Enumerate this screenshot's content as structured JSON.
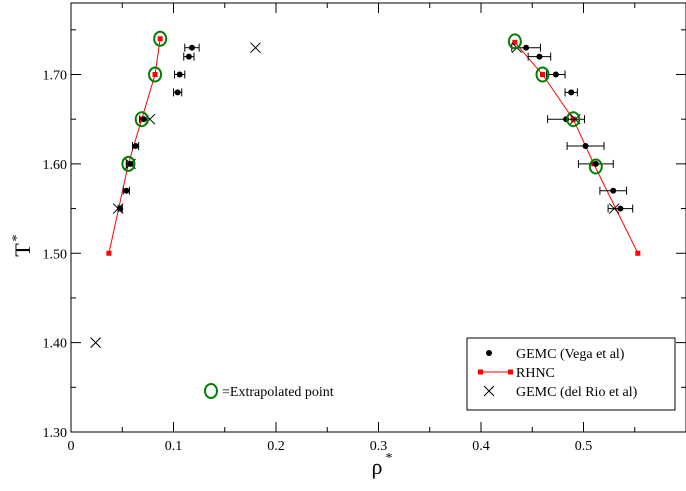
{
  "chart_data": {
    "type": "scatter",
    "title": "",
    "xlabel": "ρ",
    "xlabel_superscript": "*",
    "ylabel": "T",
    "ylabel_superscript": "*",
    "xlim": [
      0,
      0.6
    ],
    "ylim": [
      1.3,
      1.78
    ],
    "x_ticks": [
      0,
      0.1,
      0.2,
      0.3,
      0.4,
      0.5
    ],
    "x_tick_labels": [
      "0",
      "0.1",
      "0.2",
      "0.3",
      "0.4",
      "0.5"
    ],
    "y_ticks": [
      1.3,
      1.4,
      1.5,
      1.6,
      1.7
    ],
    "y_tick_labels": [
      "1.30",
      "1.40",
      "1.50",
      "1.60",
      "1.70"
    ],
    "grid": false,
    "legend_position": "bottom-right",
    "series": [
      {
        "name": "GEMC (Vega et al)",
        "marker": "dot",
        "color": "#000000",
        "points": [
          {
            "x": 0.118,
            "y": 1.73,
            "xerr": 0.007
          },
          {
            "x": 0.115,
            "y": 1.72,
            "xerr": 0.005
          },
          {
            "x": 0.106,
            "y": 1.7,
            "xerr": 0.005
          },
          {
            "x": 0.104,
            "y": 1.68,
            "xerr": 0.004
          },
          {
            "x": 0.071,
            "y": 1.65,
            "xerr": 0.004
          },
          {
            "x": 0.063,
            "y": 1.62,
            "xerr": 0.003
          },
          {
            "x": 0.058,
            "y": 1.6,
            "xerr": 0.004
          },
          {
            "x": 0.054,
            "y": 1.57,
            "xerr": 0.003
          },
          {
            "x": 0.048,
            "y": 1.55,
            "xerr": 0.002
          },
          {
            "x": 0.444,
            "y": 1.73,
            "xerr": 0.014
          },
          {
            "x": 0.457,
            "y": 1.72,
            "xerr": 0.011
          },
          {
            "x": 0.473,
            "y": 1.7,
            "xerr": 0.009
          },
          {
            "x": 0.488,
            "y": 1.68,
            "xerr": 0.006
          },
          {
            "x": 0.483,
            "y": 1.65,
            "xerr": 0.018
          },
          {
            "x": 0.502,
            "y": 1.62,
            "xerr": 0.018
          },
          {
            "x": 0.512,
            "y": 1.6,
            "xerr": 0.017
          },
          {
            "x": 0.529,
            "y": 1.57,
            "xerr": 0.013
          },
          {
            "x": 0.536,
            "y": 1.55,
            "xerr": 0.012
          }
        ]
      },
      {
        "name": "RHNC",
        "marker": "square-line",
        "color": "#ff0000",
        "left_branch": [
          {
            "x": 0.037,
            "y": 1.5
          },
          {
            "x": 0.056,
            "y": 1.6
          },
          {
            "x": 0.069,
            "y": 1.65
          },
          {
            "x": 0.082,
            "y": 1.7
          },
          {
            "x": 0.087,
            "y": 1.74
          }
        ],
        "right_branch": [
          {
            "x": 0.433,
            "y": 1.736
          },
          {
            "x": 0.46,
            "y": 1.7
          },
          {
            "x": 0.49,
            "y": 1.65
          },
          {
            "x": 0.51,
            "y": 1.6
          },
          {
            "x": 0.553,
            "y": 1.5
          }
        ]
      },
      {
        "name": "GEMC (del Rio et al)",
        "marker": "x",
        "color": "#000000",
        "points": [
          {
            "x": 0.18,
            "y": 1.73
          },
          {
            "x": 0.077,
            "y": 1.65
          },
          {
            "x": 0.058,
            "y": 1.6
          },
          {
            "x": 0.046,
            "y": 1.55
          },
          {
            "x": 0.024,
            "y": 1.4
          },
          {
            "x": 0.435,
            "y": 1.73
          },
          {
            "x": 0.492,
            "y": 1.65
          },
          {
            "x": 0.53,
            "y": 1.55
          }
        ]
      },
      {
        "name": "Extrapolated point",
        "marker": "circle-open",
        "color": "#008000",
        "points": [
          {
            "x": 0.087,
            "y": 1.74
          },
          {
            "x": 0.082,
            "y": 1.7
          },
          {
            "x": 0.069,
            "y": 1.65
          },
          {
            "x": 0.056,
            "y": 1.6
          },
          {
            "x": 0.433,
            "y": 1.737
          },
          {
            "x": 0.46,
            "y": 1.7
          },
          {
            "x": 0.49,
            "y": 1.65
          },
          {
            "x": 0.512,
            "y": 1.597
          }
        ]
      }
    ],
    "legend": [
      "GEMC (Vega et al)",
      "RHNC",
      "GEMC (del Rio et al)"
    ],
    "annotation": "=Extrapolated point"
  }
}
